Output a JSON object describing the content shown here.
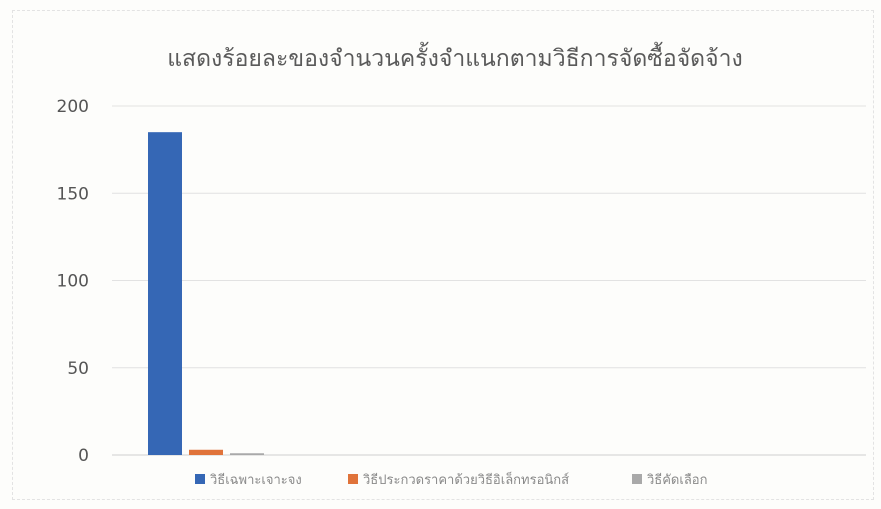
{
  "chart_data": {
    "type": "bar",
    "title": "แสดงร้อยละของจำนวนครั้งจำแนกตามวิธีการจัดซื้อจัดจ้าง",
    "xlabel": "",
    "ylabel": "",
    "ylim": [
      0,
      200
    ],
    "yticks": [
      "0",
      "50",
      "100",
      "150",
      "200"
    ],
    "grid": true,
    "legend_position": "bottom",
    "categories": [
      ""
    ],
    "series": [
      {
        "name": "วิธีเฉพาะเจาะจง",
        "values": [
          185
        ],
        "color": "#3567b5"
      },
      {
        "name": "วิธีประกวดราคาด้วยวิธีอิเล็กทรอนิกส์",
        "values": [
          3
        ],
        "color": "#e0733a"
      },
      {
        "name": "วิธีคัดเลือก",
        "values": [
          1
        ],
        "color": "#a9a9a9"
      }
    ]
  }
}
